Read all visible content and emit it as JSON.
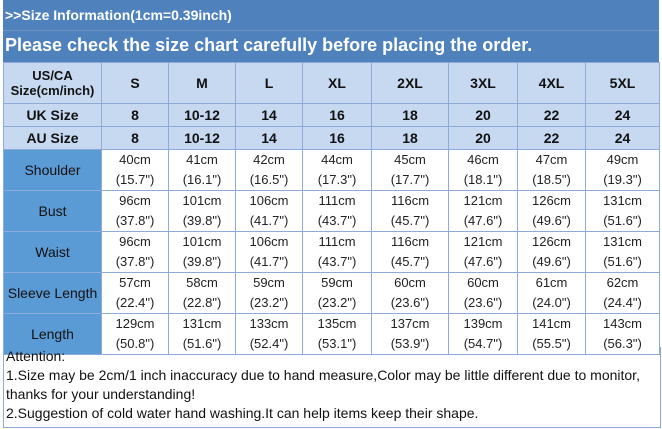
{
  "header": {
    "info": ">>Size Information(1cm=0.39inch)",
    "notice": "Please check the size chart carefully before placing the order."
  },
  "table": {
    "corner": [
      "US/CA",
      "Size(cm/inch)"
    ],
    "sizes": [
      "S",
      "M",
      "L",
      "XL",
      "2XL",
      "3XL",
      "4XL",
      "5XL"
    ],
    "size_rows": [
      {
        "label": "UK Size",
        "values": [
          "8",
          "10-12",
          "14",
          "16",
          "18",
          "20",
          "22",
          "24"
        ]
      },
      {
        "label": "AU Size",
        "values": [
          "8",
          "10-12",
          "14",
          "16",
          "18",
          "20",
          "22",
          "24"
        ]
      }
    ],
    "measure_rows": [
      {
        "label": "Shoulder",
        "cm": [
          "40cm",
          "41cm",
          "42cm",
          "44cm",
          "45cm",
          "46cm",
          "47cm",
          "49cm"
        ],
        "inch": [
          "(15.7\")",
          "(16.1\")",
          "(16.5\")",
          "(17.3\")",
          "(17.7\")",
          "(18.1\")",
          "(18.5\")",
          "(19.3\")"
        ]
      },
      {
        "label": "Bust",
        "cm": [
          "96cm",
          "101cm",
          "106cm",
          "111cm",
          "116cm",
          "121cm",
          "126cm",
          "131cm"
        ],
        "inch": [
          "(37.8\")",
          "(39.8\")",
          "(41.7\")",
          "(43.7\")",
          "(45.7\")",
          "(47.6\")",
          "(49.6\")",
          "(51.6\")"
        ]
      },
      {
        "label": "Waist",
        "cm": [
          "96cm",
          "101cm",
          "106cm",
          "111cm",
          "116cm",
          "121cm",
          "126cm",
          "131cm"
        ],
        "inch": [
          "(37.8\")",
          "(39.8\")",
          "(41.7\")",
          "(43.7\")",
          "(45.7\")",
          "(47.6\")",
          "(49.6\")",
          "(51.6\")"
        ]
      },
      {
        "label": "Sleeve Length",
        "cm": [
          "57cm",
          "58cm",
          "59cm",
          "59cm",
          "60cm",
          "60cm",
          "61cm",
          "62cm"
        ],
        "inch": [
          "(22.4\")",
          "(22.8\")",
          "(23.2\")",
          "(23.2\")",
          "(23.6\")",
          "(23.6\")",
          "(24.0\")",
          "(24.4\")"
        ]
      },
      {
        "label": "Length",
        "cm": [
          "129cm",
          "131cm",
          "133cm",
          "135cm",
          "137cm",
          "139cm",
          "141cm",
          "143cm"
        ],
        "inch": [
          "(50.8\")",
          "(51.6\")",
          "(52.4\")",
          "(53.1\")",
          "(53.9\")",
          "(54.7\")",
          "(55.5\")",
          "(56.3\")"
        ]
      }
    ]
  },
  "attention": {
    "title": "Attention:",
    "lines": [
      "1.Size may be 2cm/1 inch inaccuracy due to hand measure,Color may be little different due to monitor,",
      "thanks for your understanding!",
      "2.Suggestion of cold water hand washing.It can help items keep their shape."
    ]
  },
  "colors": {
    "header": "#4f81bd",
    "size_cells": "#c6d9f1",
    "label_cells": "#5b9bd5"
  }
}
